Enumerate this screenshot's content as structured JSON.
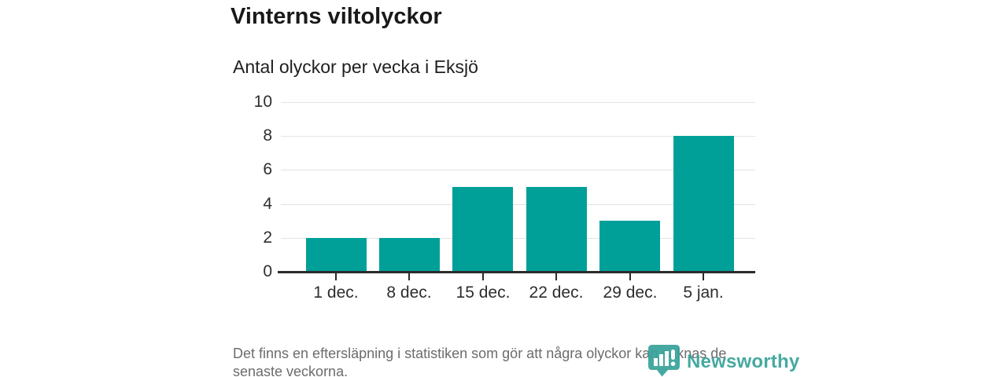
{
  "header": {
    "title": "Vinterns viltolyckor",
    "subtitle": "Antal olyckor per vecka i Eksjö"
  },
  "chart_data": {
    "type": "bar",
    "title": "Vinterns viltolyckor",
    "subtitle": "Antal olyckor per vecka i Eksjö",
    "categories": [
      "1 dec.",
      "8 dec.",
      "15 dec.",
      "22 dec.",
      "29 dec.",
      "5 jan."
    ],
    "values": [
      2,
      2,
      5,
      5,
      3,
      8
    ],
    "xlabel": "",
    "ylabel": "",
    "ylim": [
      0,
      10
    ],
    "yticks": [
      0,
      2,
      4,
      6,
      8,
      10
    ],
    "grid": "horizontal gridlines on",
    "legend": "none",
    "bar_color": "#00a099"
  },
  "footer": {
    "note_lines": [
      "Det finns en eftersläpning i statistiken som gör att några olyckor kan saknas de",
      "senaste veckorna."
    ],
    "brand": "Newsworthy"
  },
  "colors": {
    "bar": "#00a099",
    "axis": "#2b2b2b",
    "gridline": "#e3e3e3",
    "title_text": "#191919",
    "muted_text": "#6c6c6c",
    "brand_teal": "#37a29a"
  }
}
